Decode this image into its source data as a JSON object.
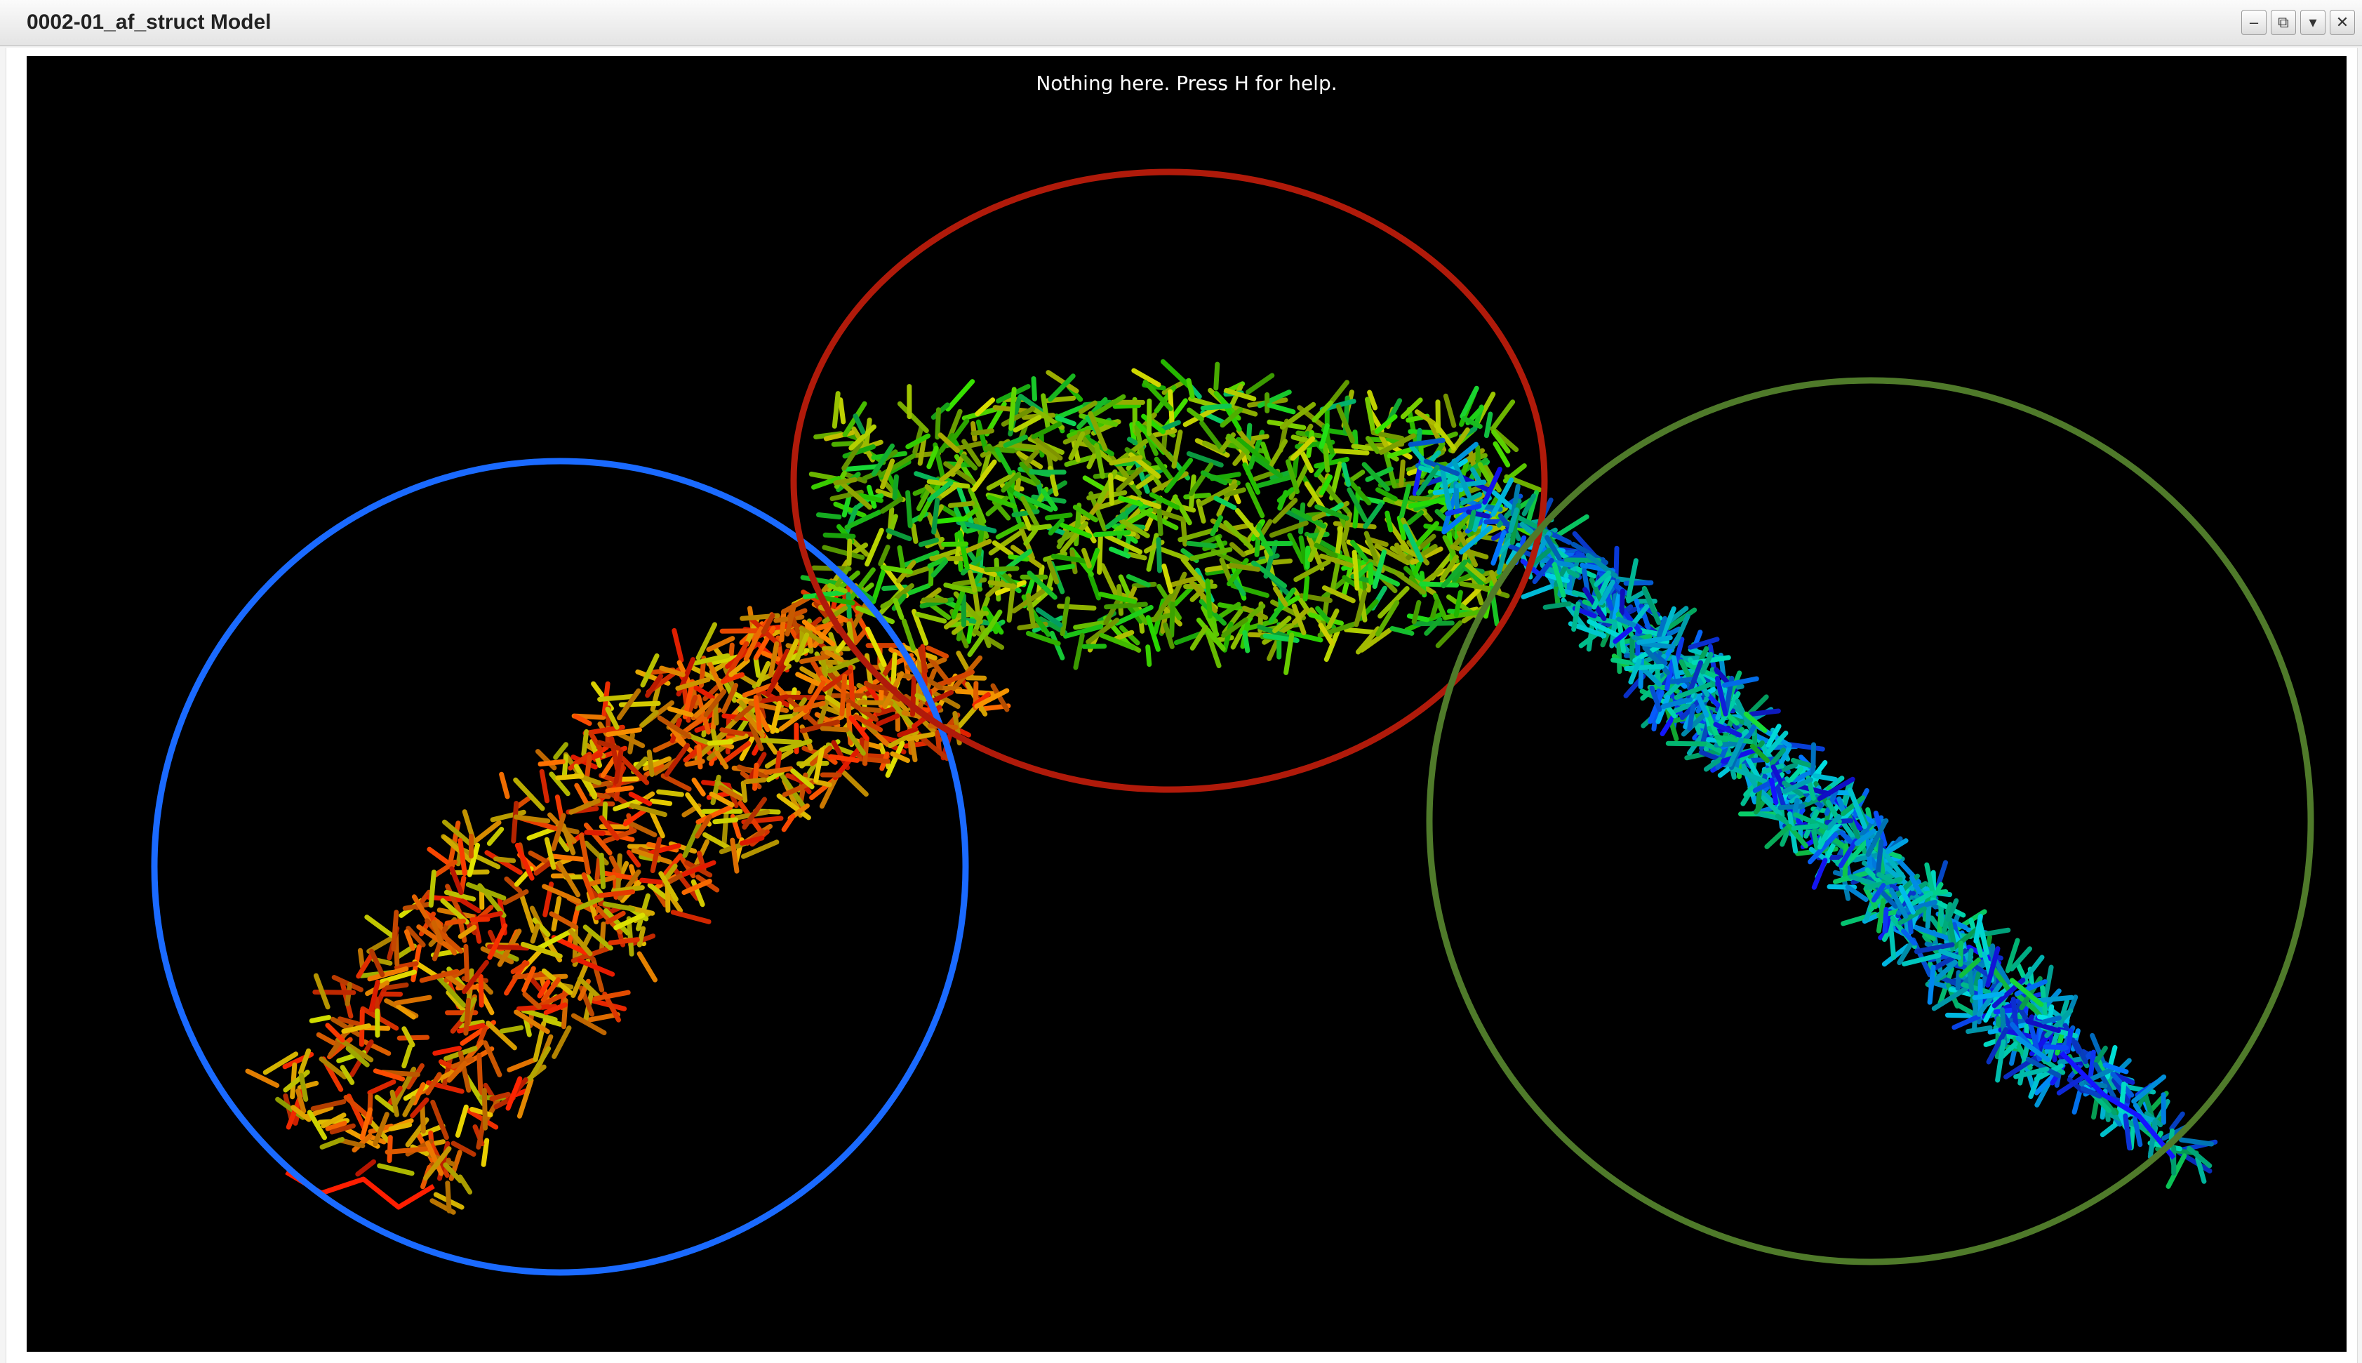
{
  "window": {
    "title": "0002-01_af_struct Model",
    "buttons": [
      {
        "name": "minimize-button",
        "icon": "minimize-icon",
        "glyph": "–"
      },
      {
        "name": "detach-button",
        "icon": "external-window-icon",
        "glyph": "⧉"
      },
      {
        "name": "menu-dropdown-button",
        "icon": "chevron-down-icon",
        "glyph": "▾"
      },
      {
        "name": "close-button",
        "icon": "close-icon",
        "glyph": "✕"
      }
    ]
  },
  "viewer": {
    "status_message": "Nothing here. Press H for help.",
    "background_color": "#000000",
    "domains": [
      {
        "name": "domain-left",
        "ring_color": "#1a6aff"
      },
      {
        "name": "domain-center",
        "ring_color": "#b01a0a"
      },
      {
        "name": "domain-right",
        "ring_color": "#4f7a2a"
      }
    ]
  }
}
